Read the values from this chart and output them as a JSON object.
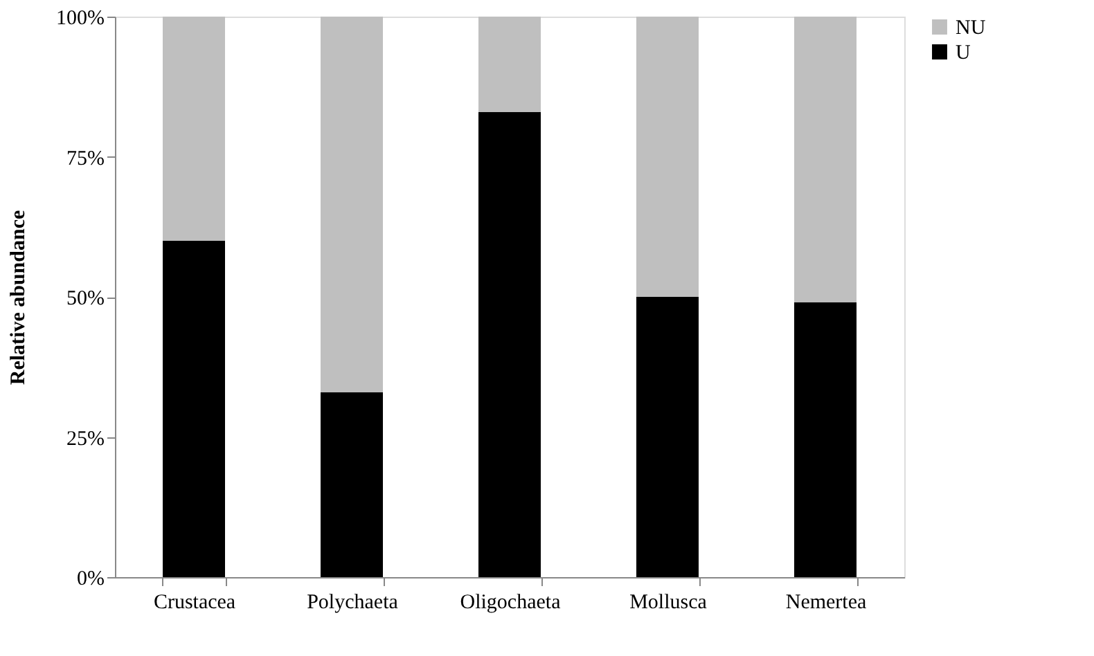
{
  "chart_data": {
    "type": "bar",
    "stacked": true,
    "ylabel": "Relative abundance",
    "categories": [
      "Crustacea",
      "Polychaeta",
      "Oligochaeta",
      "Mollusca",
      "Nemertea"
    ],
    "series": [
      {
        "name": "U",
        "color": "#000000",
        "values": [
          60,
          33,
          83,
          50,
          49
        ]
      },
      {
        "name": "NU",
        "color": "#bfbfbf",
        "values": [
          40,
          67,
          17,
          50,
          51
        ]
      }
    ],
    "ylim": [
      0,
      100
    ],
    "yticks": [
      {
        "value": 0,
        "label": "0%"
      },
      {
        "value": 25,
        "label": "25%"
      },
      {
        "value": 50,
        "label": "50%"
      },
      {
        "value": 75,
        "label": "75%"
      },
      {
        "value": 100,
        "label": "100%"
      }
    ],
    "grid": false,
    "legend": "right"
  }
}
